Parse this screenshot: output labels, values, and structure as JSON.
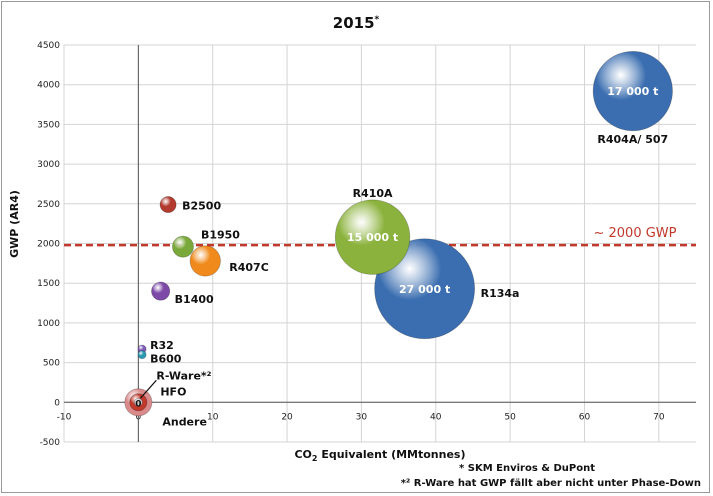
{
  "chart_data": {
    "type": "scatter",
    "title": "2015",
    "title_superscript": "*",
    "xlabel_prefix": "CO",
    "xlabel_sub": "2",
    "xlabel_suffix": " Equivalent (MMtonnes)",
    "ylabel": "GWP (AR4)",
    "xlim": [
      -10,
      75
    ],
    "ylim": [
      -500,
      4500
    ],
    "x_ticks": [
      -10,
      0,
      10,
      20,
      30,
      40,
      50,
      60,
      70
    ],
    "y_ticks": [
      -500,
      0,
      500,
      1000,
      1500,
      2000,
      2500,
      3000,
      3500,
      4000,
      4500
    ],
    "grid": true,
    "reference_line": {
      "y": 1980,
      "label": "~ 2000 GWP",
      "color": "#c0392b"
    },
    "bubbles": [
      {
        "name": "R404A/ 507",
        "x": 66.5,
        "y": 3920,
        "size": 17000,
        "bubble_label": "17 000 t",
        "color": "#3b6eb0"
      },
      {
        "name": "R134a",
        "x": 38.5,
        "y": 1430,
        "size": 27000,
        "bubble_label": "27 000 t",
        "color": "#3b6eb0"
      },
      {
        "name": "R410A",
        "x": 31.5,
        "y": 2080,
        "size": 15000,
        "bubble_label": "15 000 t",
        "color": "#8bb23c"
      },
      {
        "name": "B2500",
        "x": 4,
        "y": 2490,
        "size": 700,
        "bubble_label": "",
        "color": "#b23a2e"
      },
      {
        "name": "B1950",
        "x": 6,
        "y": 1960,
        "size": 1200,
        "bubble_label": "",
        "color": "#7aa83a"
      },
      {
        "name": "R407C",
        "x": 9,
        "y": 1780,
        "size": 2500,
        "bubble_label": "",
        "color": "#f08a1c"
      },
      {
        "name": "B1400",
        "x": 3,
        "y": 1400,
        "size": 900,
        "bubble_label": "",
        "color": "#7d4aa8"
      },
      {
        "name": "R32",
        "x": 0.5,
        "y": 670,
        "size": 180,
        "bubble_label": "",
        "color": "#7d5ab8"
      },
      {
        "name": "B600",
        "x": 0.5,
        "y": 600,
        "size": 180,
        "bubble_label": "",
        "color": "#2a9ab0"
      },
      {
        "name": "R-Ware*²",
        "x": 0,
        "y": 0,
        "size": 2000,
        "bubble_label": "",
        "color": "#d98a8a"
      },
      {
        "name": "HFO",
        "x": 0,
        "y": 0,
        "size": 800,
        "bubble_label": "",
        "color": "#c0392b"
      },
      {
        "name": "Andere",
        "x": 0,
        "y": 0,
        "size": 150,
        "bubble_label": "0",
        "color": "#cccccc"
      }
    ]
  },
  "footnotes": {
    "line1": "* SKM Enviros & DuPont",
    "line2": "*² R-Ware hat GWP fällt aber nicht unter Phase-Down"
  }
}
